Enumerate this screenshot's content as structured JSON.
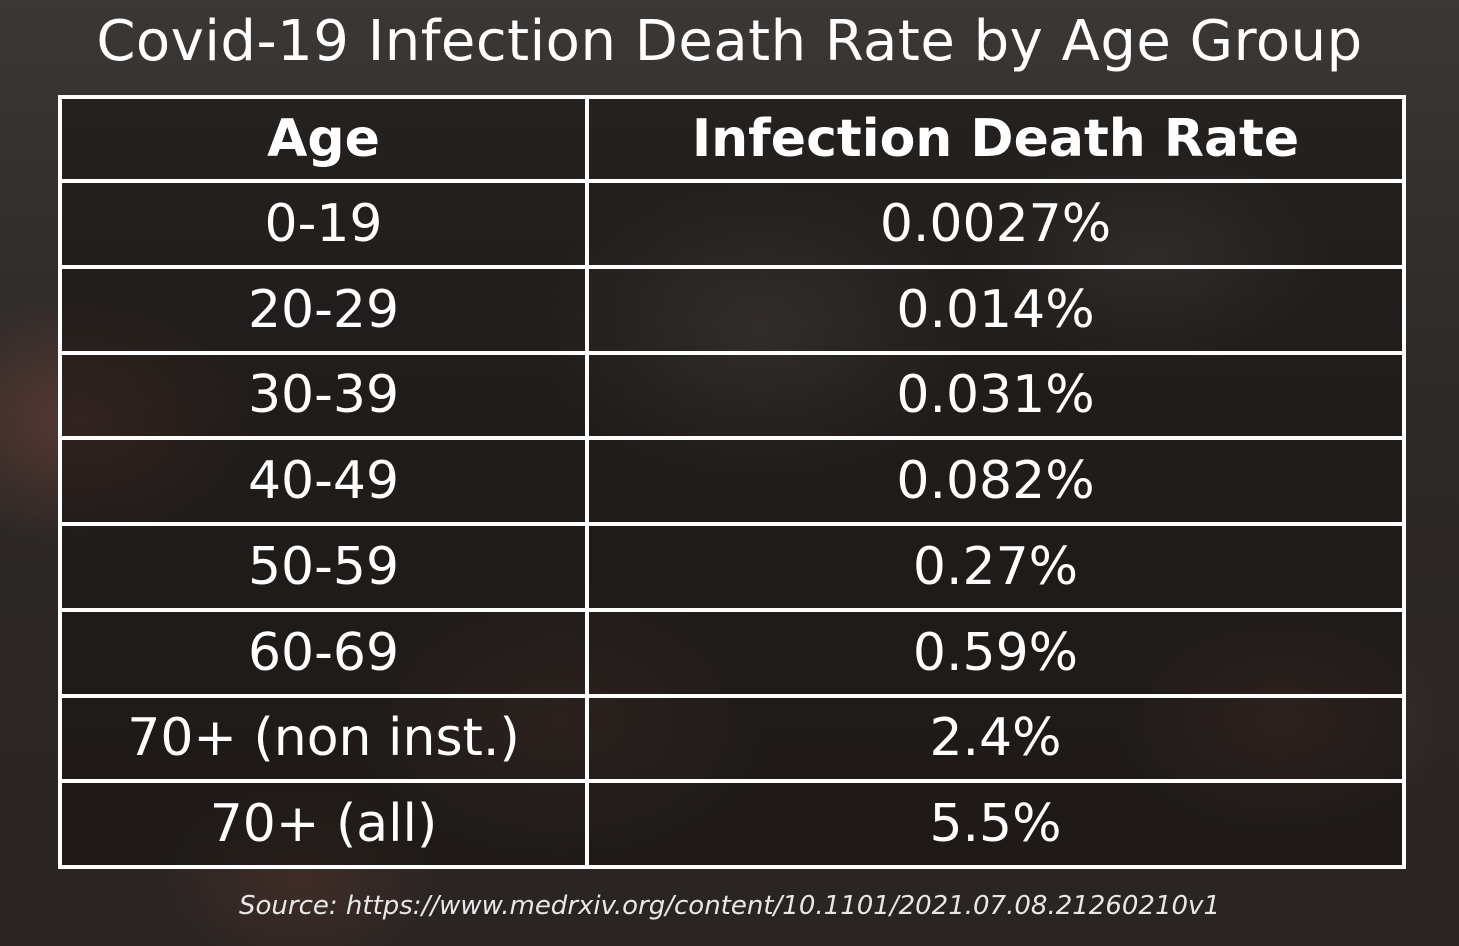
{
  "title": "Covid-19 Infection Death Rate by Age Group",
  "source": "Source: https://www.medrxiv.org/content/10.1101/2021.07.08.21260210v1",
  "chart_data": {
    "type": "table",
    "title": "Covid-19 Infection Death Rate by Age Group",
    "columns": [
      "Age",
      "Infection Death Rate"
    ],
    "rows": [
      [
        "0-19",
        "0.0027%"
      ],
      [
        "20-29",
        "0.014%"
      ],
      [
        "30-39",
        "0.031%"
      ],
      [
        "40-49",
        "0.082%"
      ],
      [
        "50-59",
        "0.27%"
      ],
      [
        "60-69",
        "0.59%"
      ],
      [
        "70+ (non inst.)",
        "2.4%"
      ],
      [
        "70+ (all)",
        "5.5%"
      ]
    ]
  }
}
